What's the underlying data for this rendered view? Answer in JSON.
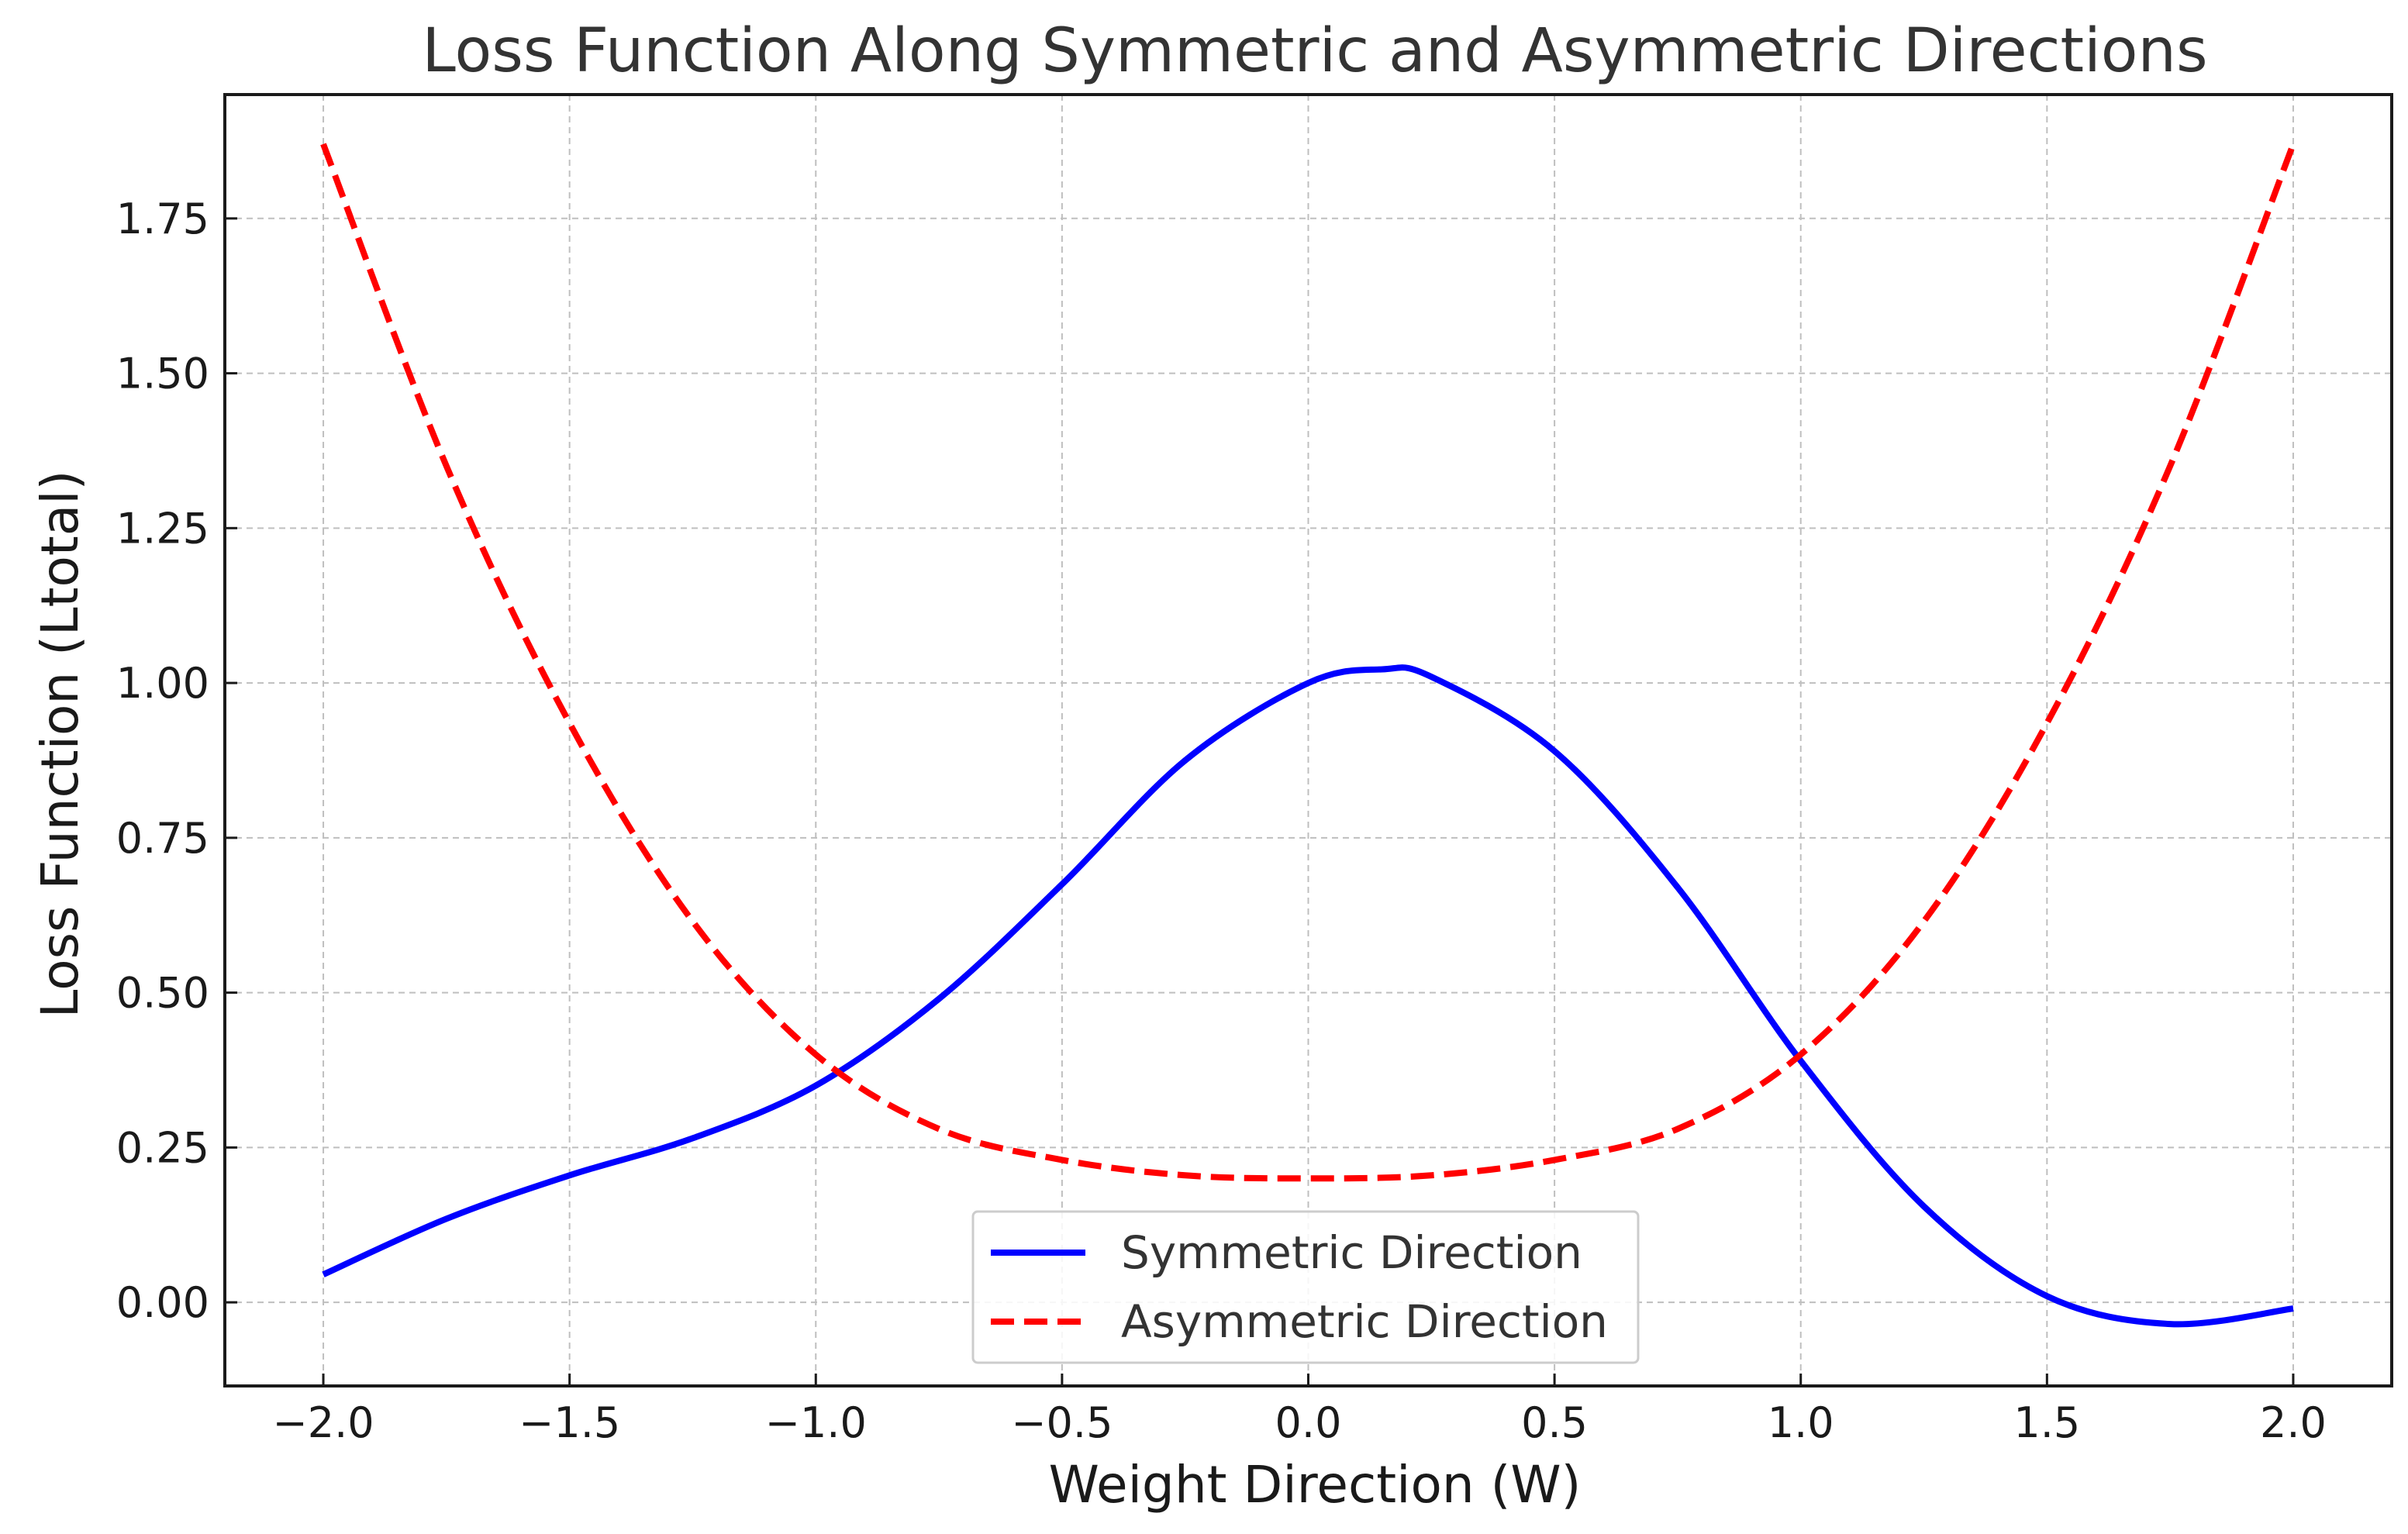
{
  "chart_data": {
    "type": "line",
    "title": "Loss Function Along Symmetric and Asymmetric Directions",
    "xlabel": "Weight Direction (W)",
    "ylabel": "Loss Function (Ltotal)",
    "xlim": [
      -2.2,
      2.2
    ],
    "ylim": [
      -0.135,
      1.95
    ],
    "xticks": [
      -2.0,
      -1.5,
      -1.0,
      -0.5,
      0.0,
      0.5,
      1.0,
      1.5,
      2.0
    ],
    "xtick_labels": [
      "−2.0",
      "−1.5",
      "−1.0",
      "−0.5",
      "0.0",
      "0.5",
      "1.0",
      "1.5",
      "2.0"
    ],
    "yticks": [
      0.0,
      0.25,
      0.5,
      0.75,
      1.0,
      1.25,
      1.5,
      1.75
    ],
    "ytick_labels": [
      "0.00",
      "0.25",
      "0.50",
      "0.75",
      "1.00",
      "1.25",
      "1.50",
      "1.75"
    ],
    "grid": true,
    "legend_position": "lower-center",
    "series": [
      {
        "name": "Symmetric Direction",
        "color": "#0000ff",
        "style": "solid",
        "x": [
          -2.0,
          -1.75,
          -1.5,
          -1.25,
          -1.0,
          -0.75,
          -0.5,
          -0.25,
          0.0,
          0.15,
          0.25,
          0.5,
          0.75,
          1.0,
          1.25,
          1.5,
          1.75,
          2.0
        ],
        "y": [
          0.045,
          0.135,
          0.205,
          0.265,
          0.35,
          0.49,
          0.675,
          0.875,
          1.0,
          1.022,
          1.01,
          0.89,
          0.67,
          0.39,
          0.155,
          0.01,
          -0.035,
          -0.01
        ]
      },
      {
        "name": "Asymmetric Direction",
        "color": "#ff0000",
        "style": "dashed",
        "x": [
          -2.0,
          -1.75,
          -1.5,
          -1.25,
          -1.0,
          -0.75,
          -0.5,
          -0.25,
          0.0,
          0.25,
          0.5,
          0.75,
          1.0,
          1.25,
          1.5,
          1.75,
          2.0
        ],
        "y": [
          1.87,
          1.35,
          0.935,
          0.615,
          0.4,
          0.28,
          0.23,
          0.205,
          0.2,
          0.205,
          0.23,
          0.28,
          0.4,
          0.615,
          0.935,
          1.35,
          1.87
        ]
      }
    ]
  }
}
